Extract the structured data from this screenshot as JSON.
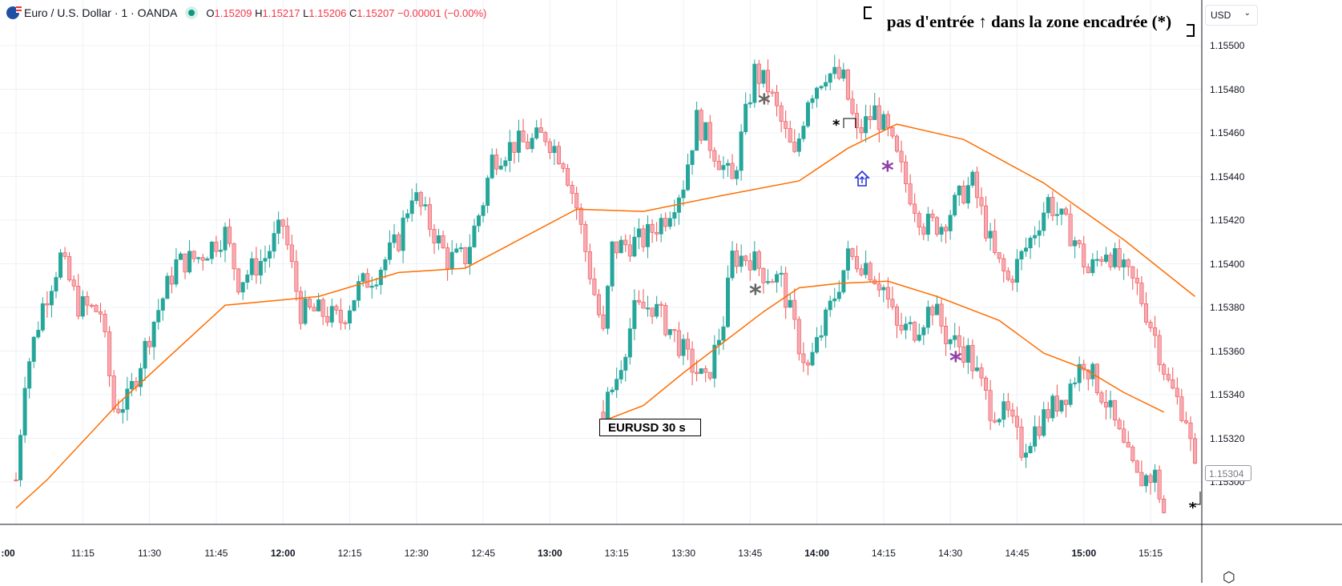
{
  "header": {
    "symbol": "Euro / U.S. Dollar · 1 · OANDA",
    "o_label": "O",
    "o": "1.15209",
    "h_label": "H",
    "h": "1.15217",
    "l_label": "L",
    "l": "1.15206",
    "c_label": "C",
    "c": "1.15207",
    "change": "−0.00001 (−0.00%)"
  },
  "annotation": {
    "text": "pas d'entrée ↑ dans la zone encadrée (*)",
    "overlay_label": "EURUSD  30 s",
    "asterisk": "*"
  },
  "price_axis": {
    "currency": "USD",
    "labels": [
      "1.15500",
      "1.15480",
      "1.15460",
      "1.15440",
      "1.15420",
      "1.15400",
      "1.15380",
      "1.15360",
      "1.15340",
      "1.15320",
      "1.15300"
    ],
    "current_price": "1.15304"
  },
  "time_axis": {
    "labels": [
      ":00",
      "11:15",
      "11:30",
      "11:45",
      "12:00",
      "12:15",
      "12:30",
      "12:45",
      "13:00",
      "13:15",
      "13:30",
      "13:45",
      "14:00",
      "14:15",
      "14:30",
      "14:45",
      "15:00",
      "15:15"
    ],
    "bold": [
      ":00",
      "12:00",
      "13:00",
      "14:00",
      "15:00"
    ]
  },
  "colors": {
    "up": "#26a69a",
    "down": "#f7a9b4",
    "down_border": "#ef5350",
    "ma": "#ff6d00",
    "grid": "#edf0f5"
  },
  "chart_data": {
    "type": "candlestick",
    "main_path": [
      [
        0,
        1.15301
      ],
      [
        2,
        1.15348
      ],
      [
        6,
        1.15381
      ],
      [
        10,
        1.15403
      ],
      [
        14,
        1.15381
      ],
      [
        19,
        1.15378
      ],
      [
        22,
        1.15334
      ],
      [
        25,
        1.15337
      ],
      [
        31,
        1.15374
      ],
      [
        36,
        1.154
      ],
      [
        41,
        1.15403
      ],
      [
        47,
        1.15414
      ],
      [
        50,
        1.15392
      ],
      [
        56,
        1.15403
      ],
      [
        60,
        1.15418
      ],
      [
        64,
        1.15378
      ],
      [
        68,
        1.15378
      ],
      [
        73,
        1.15374
      ],
      [
        77,
        1.15389
      ],
      [
        81,
        1.15396
      ],
      [
        86,
        1.15411
      ],
      [
        89,
        1.15433
      ],
      [
        94,
        1.15414
      ],
      [
        97,
        1.15402
      ],
      [
        101,
        1.15403
      ],
      [
        105,
        1.15429
      ],
      [
        107,
        1.15448
      ],
      [
        112,
        1.15455
      ],
      [
        115,
        1.15455
      ],
      [
        119,
        1.15459
      ],
      [
        123,
        1.15448
      ],
      [
        126,
        1.15426
      ],
      [
        129,
        1.15396
      ],
      [
        132,
        1.15367
      ],
      [
        134,
        1.15407
      ],
      [
        141,
        1.15411
      ],
      [
        146,
        1.15422
      ],
      [
        150,
        1.15437
      ],
      [
        153,
        1.15466
      ],
      [
        158,
        1.15448
      ],
      [
        161,
        1.15437
      ],
      [
        166,
        1.15488
      ],
      [
        169,
        1.15481
      ],
      [
        175,
        1.15448
      ],
      [
        178,
        1.15477
      ],
      [
        182,
        1.15488
      ],
      [
        186,
        1.15484
      ],
      [
        189,
        1.15459
      ],
      [
        193,
        1.1547
      ],
      [
        196,
        1.15459
      ],
      [
        200,
        1.15437
      ],
      [
        204,
        1.15418
      ],
      [
        208,
        1.15418
      ],
      [
        213,
        1.15433
      ],
      [
        215,
        1.15437
      ],
      [
        220,
        1.15403
      ],
      [
        223,
        1.15392
      ],
      [
        228,
        1.15411
      ],
      [
        232,
        1.15429
      ],
      [
        238,
        1.15411
      ],
      [
        241,
        1.15396
      ],
      [
        245,
        1.15407
      ],
      [
        249,
        1.15396
      ],
      [
        252,
        1.15389
      ],
      [
        256,
        1.15367
      ],
      [
        259,
        1.15345
      ],
      [
        263,
        1.1533
      ],
      [
        265,
        1.15304
      ]
    ],
    "overlay_path": [
      [
        132,
        1.15332
      ],
      [
        135,
        1.15348
      ],
      [
        139,
        1.15378
      ],
      [
        143,
        1.15381
      ],
      [
        148,
        1.15367
      ],
      [
        151,
        1.15356
      ],
      [
        155,
        1.15345
      ],
      [
        159,
        1.15374
      ],
      [
        161,
        1.15403
      ],
      [
        165,
        1.15403
      ],
      [
        168,
        1.15396
      ],
      [
        172,
        1.15392
      ],
      [
        176,
        1.15363
      ],
      [
        178,
        1.15352
      ],
      [
        182,
        1.15374
      ],
      [
        187,
        1.15403
      ],
      [
        191,
        1.154
      ],
      [
        195,
        1.15389
      ],
      [
        198,
        1.1537
      ],
      [
        202,
        1.1537
      ],
      [
        206,
        1.15381
      ],
      [
        209,
        1.15367
      ],
      [
        214,
        1.15359
      ],
      [
        219,
        1.15334
      ],
      [
        223,
        1.1533
      ],
      [
        226,
        1.15315
      ],
      [
        231,
        1.1533
      ],
      [
        236,
        1.15341
      ],
      [
        240,
        1.15356
      ],
      [
        245,
        1.15337
      ],
      [
        249,
        1.15315
      ],
      [
        252,
        1.15301
      ],
      [
        256,
        1.15303
      ],
      [
        258,
        1.15286
      ]
    ],
    "main_ma": [
      [
        0,
        1.15288
      ],
      [
        7,
        1.15301
      ],
      [
        23,
        1.15336
      ],
      [
        47,
        1.15381
      ],
      [
        68,
        1.15385
      ],
      [
        86,
        1.15396
      ],
      [
        101,
        1.15398
      ],
      [
        126,
        1.15425
      ],
      [
        141,
        1.15424
      ],
      [
        158,
        1.15431
      ],
      [
        176,
        1.15438
      ],
      [
        187,
        1.15453
      ],
      [
        198,
        1.15464
      ],
      [
        213,
        1.15457
      ],
      [
        231,
        1.15437
      ],
      [
        249,
        1.15411
      ],
      [
        265,
        1.15385
      ]
    ],
    "overlay_ma": [
      [
        132,
        1.15328
      ],
      [
        141,
        1.15335
      ],
      [
        150,
        1.1535
      ],
      [
        159,
        1.15364
      ],
      [
        168,
        1.15378
      ],
      [
        176,
        1.15389
      ],
      [
        185,
        1.15391
      ],
      [
        196,
        1.15392
      ],
      [
        207,
        1.15385
      ],
      [
        221,
        1.15374
      ],
      [
        231,
        1.15359
      ],
      [
        240,
        1.15352
      ],
      [
        249,
        1.15341
      ],
      [
        258,
        1.15332
      ]
    ],
    "x_unit": "minutes since 11:00",
    "ylim": [
      1.1528,
      1.1551
    ]
  }
}
